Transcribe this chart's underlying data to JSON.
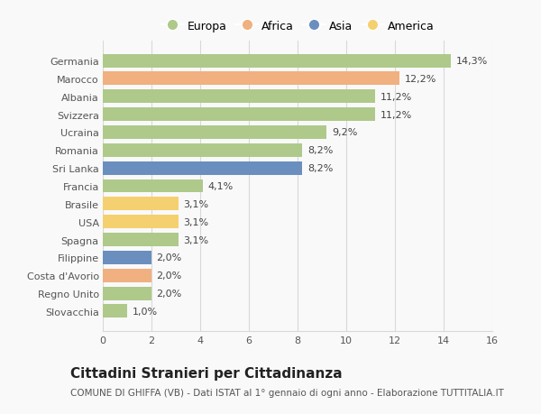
{
  "countries": [
    "Germania",
    "Marocco",
    "Albania",
    "Svizzera",
    "Ucraina",
    "Romania",
    "Sri Lanka",
    "Francia",
    "Brasile",
    "USA",
    "Spagna",
    "Filippine",
    "Costa d'Avorio",
    "Regno Unito",
    "Slovacchia"
  ],
  "values": [
    14.3,
    12.2,
    11.2,
    11.2,
    9.2,
    8.2,
    8.2,
    4.1,
    3.1,
    3.1,
    3.1,
    2.0,
    2.0,
    2.0,
    1.0
  ],
  "labels": [
    "14,3%",
    "12,2%",
    "11,2%",
    "11,2%",
    "9,2%",
    "8,2%",
    "8,2%",
    "4,1%",
    "3,1%",
    "3,1%",
    "3,1%",
    "2,0%",
    "2,0%",
    "2,0%",
    "1,0%"
  ],
  "continents": [
    "Europa",
    "Africa",
    "Europa",
    "Europa",
    "Europa",
    "Europa",
    "Asia",
    "Europa",
    "America",
    "America",
    "Europa",
    "Asia",
    "Africa",
    "Europa",
    "Europa"
  ],
  "colors": {
    "Europa": "#aec98a",
    "Africa": "#f0b080",
    "Asia": "#6a8fbf",
    "America": "#f5d070"
  },
  "xlim": [
    0,
    16
  ],
  "xticks": [
    0,
    2,
    4,
    6,
    8,
    10,
    12,
    14,
    16
  ],
  "title": "Cittadini Stranieri per Cittadinanza",
  "subtitle": "COMUNE DI GHIFFA (VB) - Dati ISTAT al 1° gennaio di ogni anno - Elaborazione TUTTITALIA.IT",
  "background_color": "#f9f9f9",
  "grid_color": "#d8d8d8",
  "bar_height": 0.75,
  "label_fontsize": 8,
  "tick_fontsize": 8,
  "title_fontsize": 11,
  "subtitle_fontsize": 7.5,
  "legend_order": [
    "Europa",
    "Africa",
    "Asia",
    "America"
  ]
}
